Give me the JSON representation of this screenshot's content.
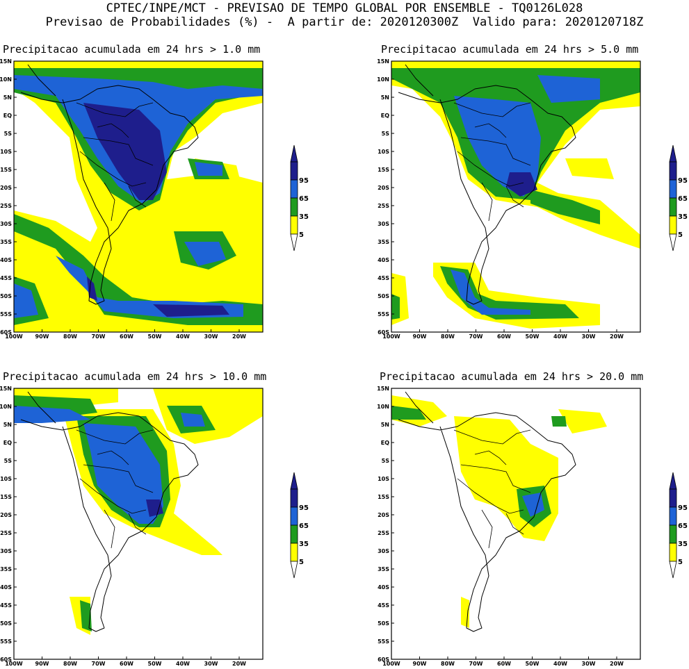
{
  "header": {
    "line1": "CPTEC/INPE/MCT - PREVISAO DE TEMPO GLOBAL POR ENSEMBLE - TQ0126L028",
    "line2": "Previsao de Probabilidades (%) -  A partir de: 2020120300Z  Valido para: 2020120718Z"
  },
  "panels": [
    {
      "title": "Precipitacao acumulada em 24 hrs > 1.0 mm"
    },
    {
      "title": "Precipitacao acumulada em 24 hrs > 5.0 mm"
    },
    {
      "title": "Precipitacao acumulada em 24 hrs > 10.0 mm"
    },
    {
      "title": "Precipitacao acumulada em 24 hrs > 20.0 mm"
    }
  ],
  "lat_labels": [
    "15N",
    "10N",
    "5N",
    "EQ",
    "5S",
    "10S",
    "15S",
    "20S",
    "25S",
    "30S",
    "35S",
    "40S",
    "45S",
    "50S",
    "55S",
    "60S"
  ],
  "lon_labels": [
    "100W",
    "90W",
    "80W",
    "70W",
    "60W",
    "50W",
    "40W",
    "30W",
    "20W"
  ],
  "colorbar": {
    "levels": [
      "5",
      "35",
      "65",
      "95"
    ],
    "colors": {
      "yellow": "#ffff00",
      "green": "#1f9b1f",
      "blue": "#1e63d6",
      "navy": "#1e1e8c"
    }
  }
}
